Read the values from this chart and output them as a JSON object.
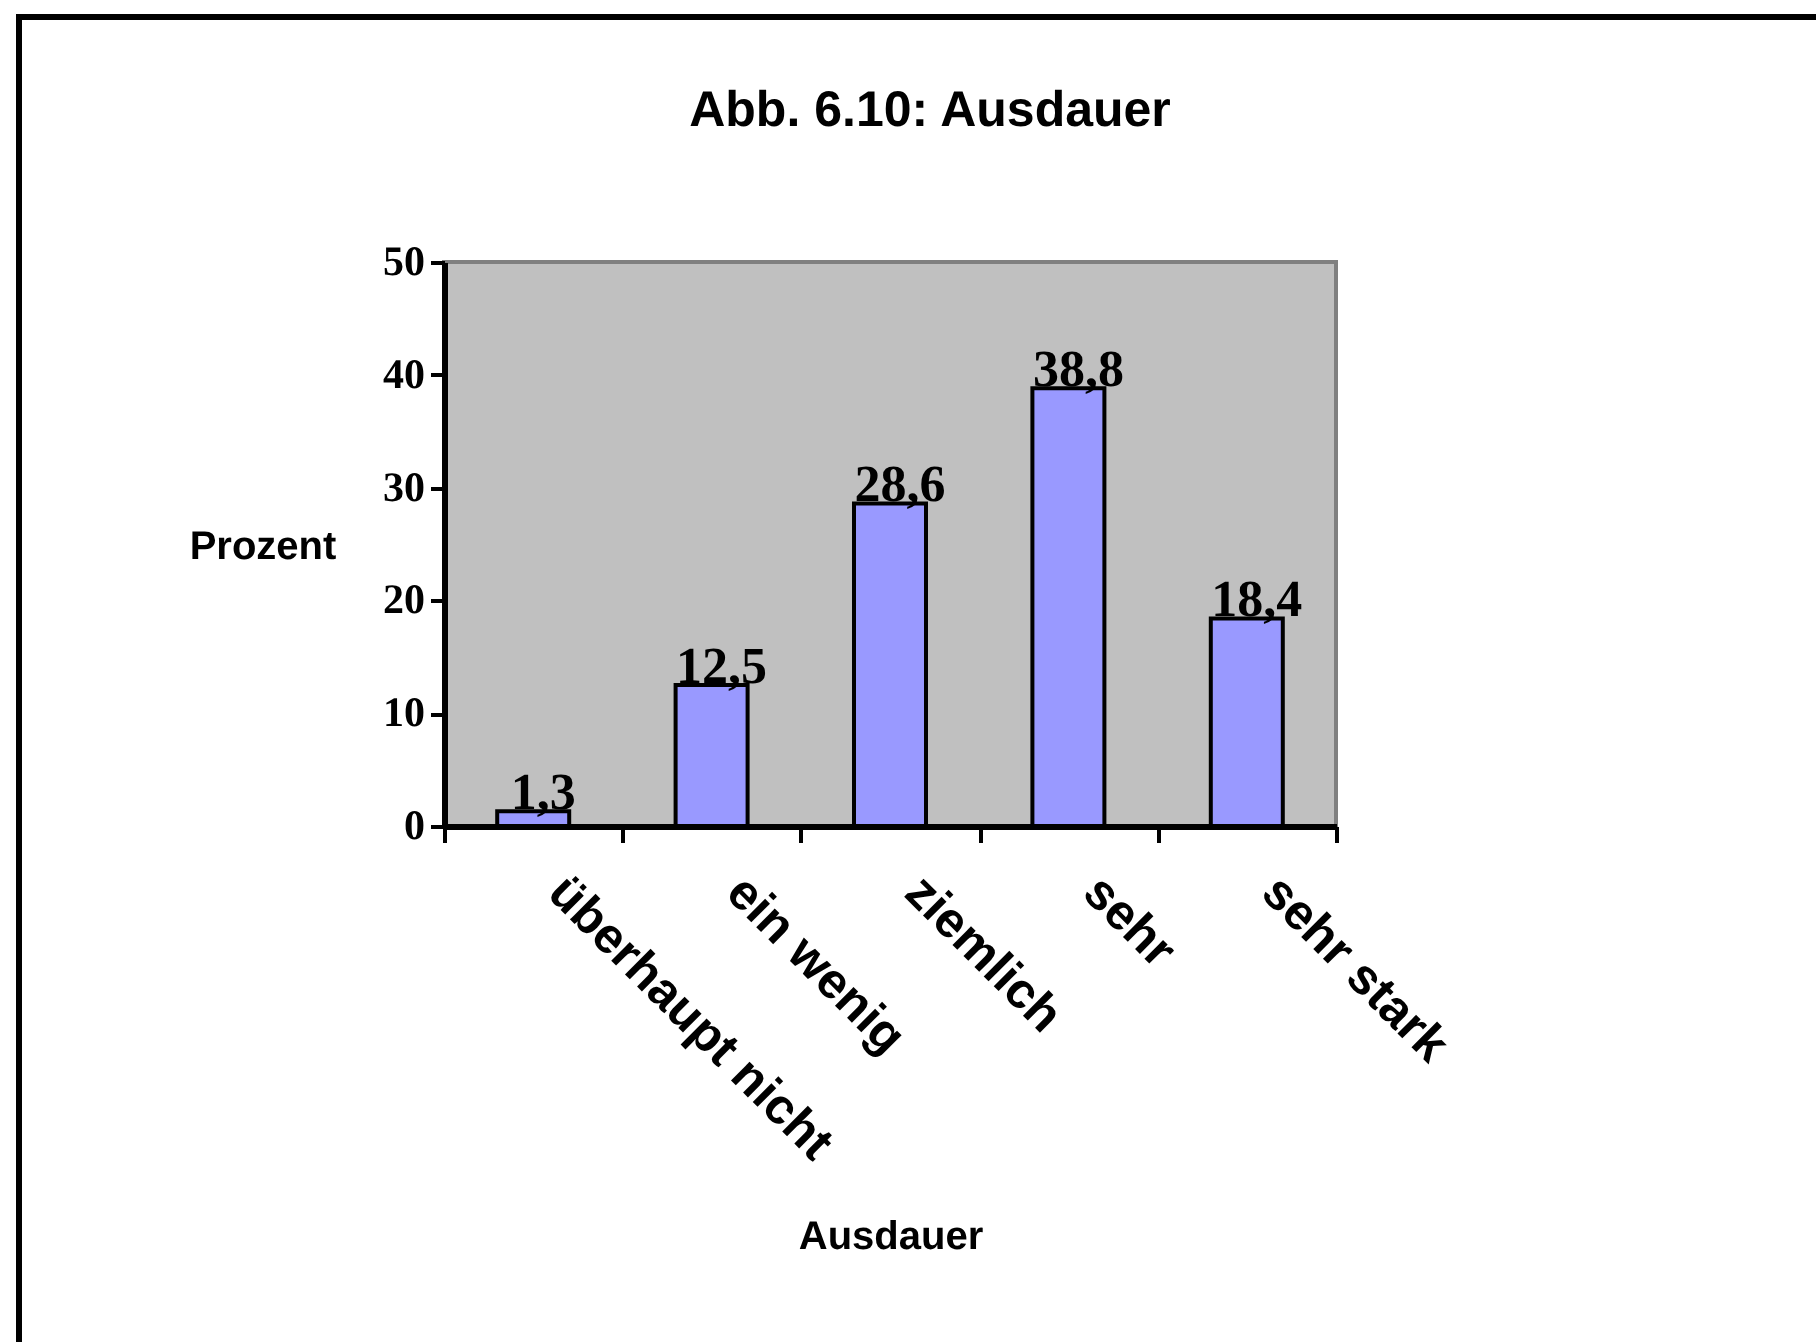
{
  "chart_data": {
    "type": "bar",
    "title": "Abb. 6.10: Ausdauer",
    "xlabel": "Ausdauer",
    "ylabel": "Prozent",
    "categories": [
      "überhaupt nicht",
      "ein wenig",
      "ziemlich",
      "sehr",
      "sehr stark"
    ],
    "values": [
      1.3,
      12.5,
      28.6,
      38.8,
      18.4
    ],
    "value_labels": [
      "1,3",
      "12,5",
      "28,6",
      "38,8",
      "18,4"
    ],
    "color": "#9999ff",
    "ylim": [
      0,
      50
    ],
    "yticks": [
      0,
      10,
      20,
      30,
      40,
      50
    ]
  }
}
